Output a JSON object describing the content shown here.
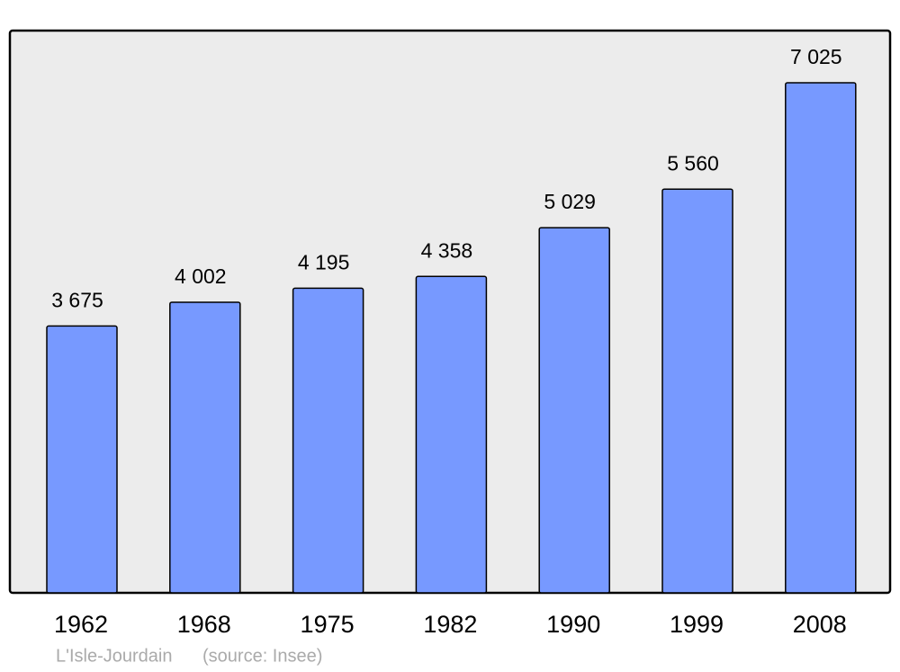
{
  "chart_data": {
    "type": "bar",
    "categories": [
      "1962",
      "1968",
      "1975",
      "1982",
      "1990",
      "1999",
      "2008"
    ],
    "values": [
      3675,
      4002,
      4195,
      4358,
      5029,
      5560,
      7025
    ],
    "value_labels": [
      "3 675",
      "4 002",
      "4 195",
      "4 358",
      "5 029",
      "5 560",
      "7 025"
    ],
    "color": "#7799ff",
    "place": "L'Isle-Jourdain",
    "source": "(source: Insee)"
  }
}
